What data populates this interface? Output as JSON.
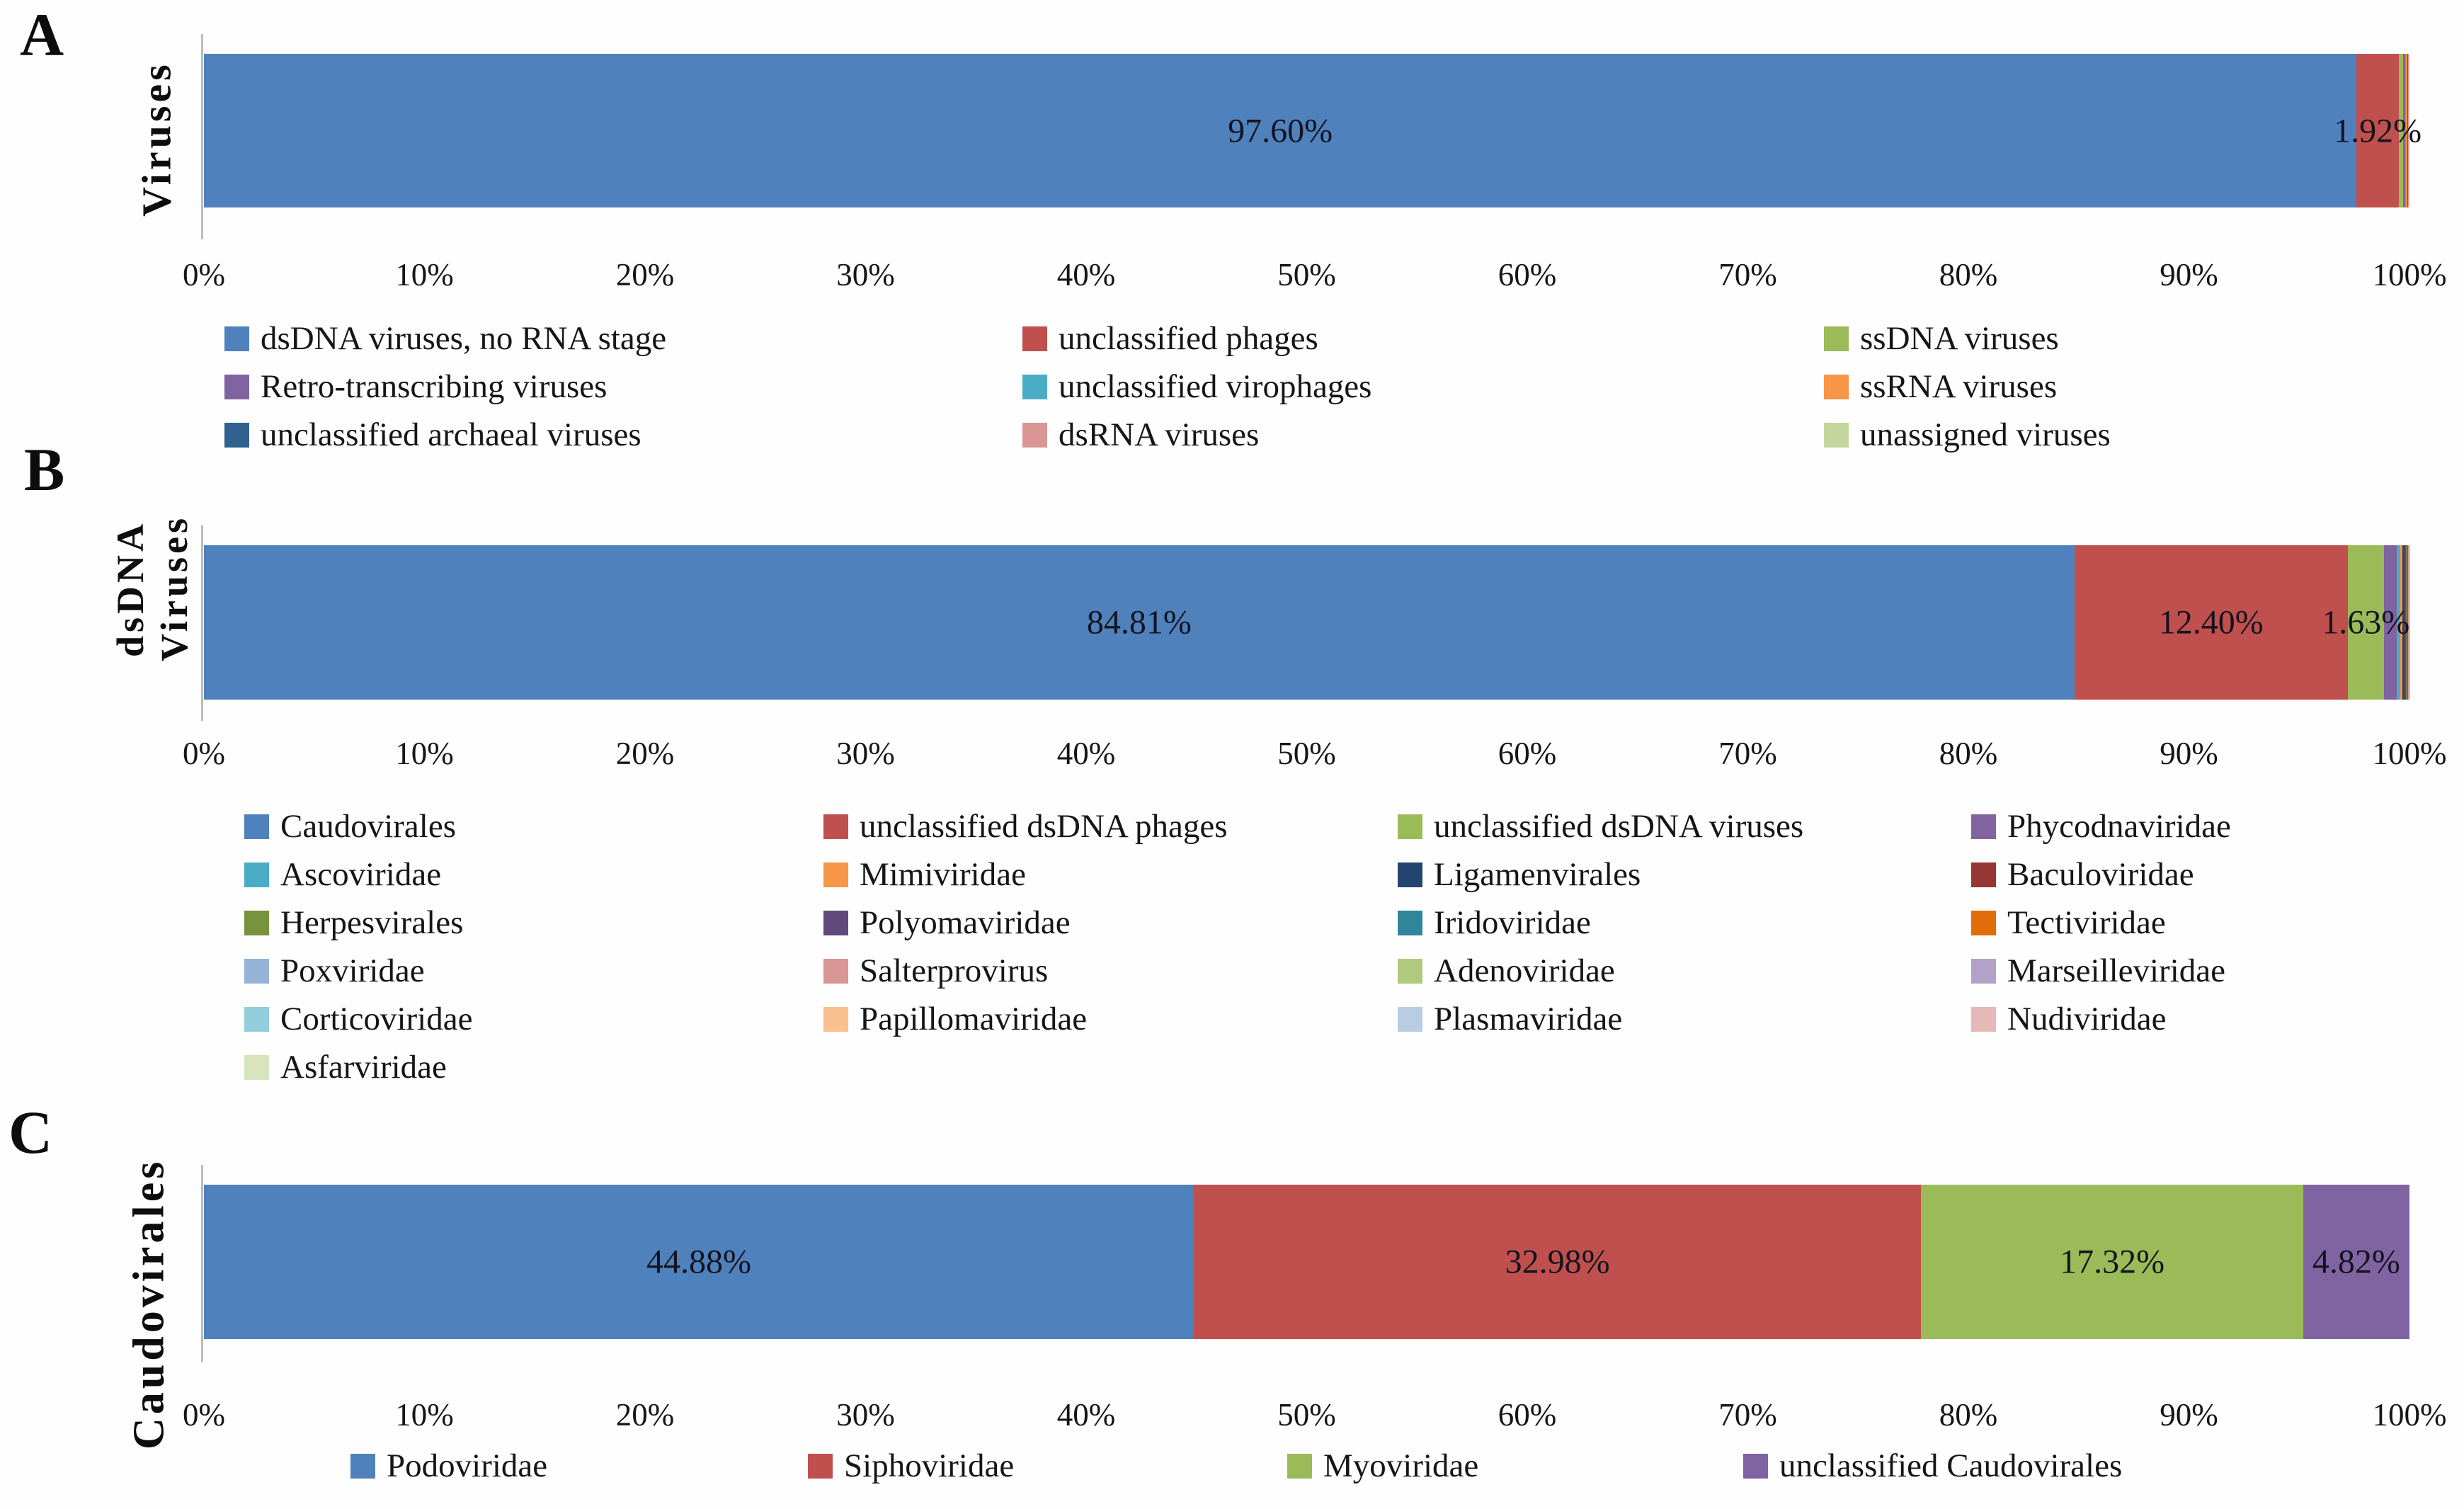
{
  "chart_data": [
    {
      "type": "stacked_bar_horizontal",
      "panel": "A",
      "bar_label": "Viruses",
      "xlim": [
        0,
        100
      ],
      "x_ticks": [
        "0%",
        "10%",
        "20%",
        "30%",
        "40%",
        "50%",
        "60%",
        "70%",
        "80%",
        "90%",
        "100%"
      ],
      "legend_position": "below-axis",
      "legend_columns": 3,
      "series": [
        {
          "name": "dsDNA viruses, no RNA stage",
          "color": "#4F81BD",
          "value": 97.6,
          "label": "97.60%"
        },
        {
          "name": "unclassified phages",
          "color": "#C0504D",
          "value": 1.92,
          "label": "1.92%"
        },
        {
          "name": "ssDNA viruses",
          "color": "#9BBB59",
          "value": 0.2
        },
        {
          "name": "Retro-transcribing viruses",
          "color": "#8064A2",
          "value": 0.08
        },
        {
          "name": "unclassified virophages",
          "color": "#4BACC6",
          "value": 0.05
        },
        {
          "name": "ssRNA viruses",
          "color": "#F79646",
          "value": 0.05
        },
        {
          "name": "unclassified archaeal viruses",
          "color": "#31618F",
          "value": 0.04
        },
        {
          "name": "dsRNA viruses",
          "color": "#D99694",
          "value": 0.03
        },
        {
          "name": "unassigned viruses",
          "color": "#C3D69B",
          "value": 0.03
        }
      ]
    },
    {
      "type": "stacked_bar_horizontal",
      "panel": "B",
      "bar_label": "dsDNA Viruses",
      "xlim": [
        0,
        100
      ],
      "x_ticks": [
        "0%",
        "10%",
        "20%",
        "30%",
        "40%",
        "50%",
        "60%",
        "70%",
        "80%",
        "90%",
        "100%"
      ],
      "legend_position": "below-axis",
      "legend_columns": 4,
      "series": [
        {
          "name": "Caudovirales",
          "color": "#4F81BD",
          "value": 84.81,
          "label": "84.81%"
        },
        {
          "name": "unclassified dsDNA phages",
          "color": "#C0504D",
          "value": 12.4,
          "label": "12.40%"
        },
        {
          "name": "unclassified dsDNA viruses",
          "color": "#9BBB59",
          "value": 1.63,
          "label": "1.63%"
        },
        {
          "name": "Phycodnaviridae",
          "color": "#8064A2",
          "value": 0.6
        },
        {
          "name": "Ascoviridae",
          "color": "#4BACC6",
          "value": 0.14
        },
        {
          "name": "Mimiviridae",
          "color": "#F79646",
          "value": 0.12
        },
        {
          "name": "Ligamenvirales",
          "color": "#24456E",
          "value": 0.08
        },
        {
          "name": "Baculoviridae",
          "color": "#953735",
          "value": 0.06
        },
        {
          "name": "Herpesvirales",
          "color": "#77933C",
          "value": 0.04
        },
        {
          "name": "Polyomaviridae",
          "color": "#604A7B",
          "value": 0.03
        },
        {
          "name": "Iridoviridae",
          "color": "#31859B",
          "value": 0.02
        },
        {
          "name": "Tectiviridae",
          "color": "#E36C0A",
          "value": 0.02
        },
        {
          "name": "Poxviridae",
          "color": "#95B3D7",
          "value": 0.01
        },
        {
          "name": "Salterprovirus",
          "color": "#D99694",
          "value": 0.01
        },
        {
          "name": "Adenoviridae",
          "color": "#AFC97E",
          "value": 0.01
        },
        {
          "name": "Marseilleviridae",
          "color": "#B2A2C7",
          "value": 0.01
        },
        {
          "name": "Corticoviridae",
          "color": "#92CDDC",
          "value": 0.005
        },
        {
          "name": "Papillomaviridae",
          "color": "#FAC08F",
          "value": 0.005
        },
        {
          "name": "Plasmaviridae",
          "color": "#B8CCE4",
          "value": 0.003
        },
        {
          "name": "Nudiviridae",
          "color": "#E5B9B7",
          "value": 0.002
        },
        {
          "name": "Asfarviridae",
          "color": "#D7E4BC",
          "value": 0.001
        }
      ]
    },
    {
      "type": "stacked_bar_horizontal",
      "panel": "C",
      "bar_label": "Caudovirales",
      "xlim": [
        0,
        100
      ],
      "x_ticks": [
        "0%",
        "10%",
        "20%",
        "30%",
        "40%",
        "50%",
        "60%",
        "70%",
        "80%",
        "90%",
        "100%"
      ],
      "legend_position": "below-axis",
      "legend_columns": 4,
      "series": [
        {
          "name": "Podoviridae",
          "color": "#4F81BD",
          "value": 44.88,
          "label": "44.88%"
        },
        {
          "name": "Siphoviridae",
          "color": "#C0504D",
          "value": 32.98,
          "label": "32.98%"
        },
        {
          "name": "Myoviridae",
          "color": "#9BBB59",
          "value": 17.32,
          "label": "17.32%"
        },
        {
          "name": "unclassified Caudovirales",
          "color": "#8064A2",
          "value": 4.82,
          "label": "4.82%"
        }
      ]
    }
  ]
}
